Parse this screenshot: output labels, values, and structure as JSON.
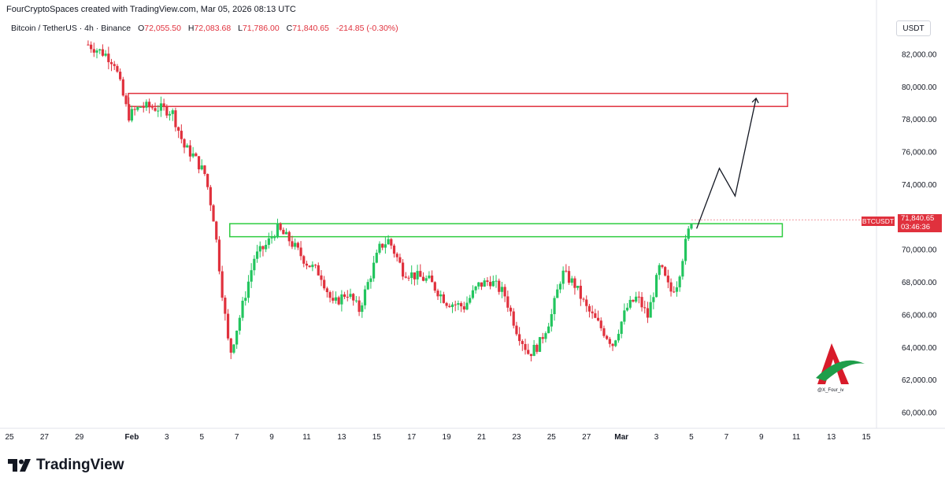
{
  "header": {
    "credit": "FourCryptoSpaces created with TradingView.com, Mar 05, 2026 08:13 UTC"
  },
  "legend": {
    "symbol": "Bitcoin / TetherUS · 4h · Binance",
    "o_label": "O",
    "o_value": "72,055.50",
    "h_label": "H",
    "h_value": "72,083.68",
    "l_label": "L",
    "l_value": "71,786.00",
    "c_label": "C",
    "c_value": "71,840.65",
    "change": "-214.85 (-0.30%)"
  },
  "currency": "USDT",
  "price_tag": {
    "symbol": "BTCUSDT",
    "price": "71,840.65",
    "countdown": "03:46:36"
  },
  "brand": {
    "name": "TradingView"
  },
  "watermark": {
    "handle": "@X_Four_iv"
  },
  "colors": {
    "up": "#22c55e",
    "down": "#e0313d",
    "resistance_box": "#e0313d",
    "support_box": "#2ecc40",
    "projection": "#131722",
    "axis_text": "#131722"
  },
  "chart_data": {
    "type": "candlestick",
    "interval": "4h",
    "y_axis": {
      "side": "right",
      "ticks": [
        "82,000.00",
        "80,000.00",
        "78,000.00",
        "76,000.00",
        "74,000.00",
        "72,000.00",
        "70,000.00",
        "68,000.00",
        "66,000.00",
        "64,000.00",
        "62,000.00",
        "60,000.00"
      ],
      "tick_values": [
        82000,
        80000,
        78000,
        76000,
        74000,
        72000,
        70000,
        68000,
        66000,
        64000,
        62000,
        60000
      ],
      "range": [
        59300,
        83500
      ]
    },
    "x_axis": {
      "labels": [
        "25",
        "27",
        "29",
        "Feb",
        "3",
        "5",
        "7",
        "9",
        "11",
        "13",
        "15",
        "17",
        "19",
        "21",
        "23",
        "25",
        "27",
        "Mar",
        "3",
        "5",
        "7",
        "9",
        "11",
        "13",
        "15"
      ],
      "label_day_index": [
        0,
        2,
        4,
        7,
        9,
        11,
        13,
        15,
        17,
        19,
        21,
        23,
        25,
        27,
        29,
        31,
        33,
        35,
        37,
        39,
        41,
        43,
        45,
        47,
        49
      ],
      "day_index_range": [
        0,
        50
      ],
      "day_index_origin": "Jan 25"
    },
    "zones": [
      {
        "name": "resistance",
        "from": 78800,
        "to": 79600,
        "start_day": 6.8,
        "end_day": 44.5,
        "color": "#e0313d"
      },
      {
        "name": "support",
        "from": 70800,
        "to": 71600,
        "start_day": 12.6,
        "end_day": 44.2,
        "color": "#2ecc40"
      }
    ],
    "projection": {
      "days": [
        39.3,
        40.6,
        41.5,
        42.7
      ],
      "prices": [
        71300,
        75000,
        73300,
        79300
      ]
    },
    "close_path": {
      "days": [
        4.5,
        5.5,
        6.0,
        6.8,
        7.5,
        8.5,
        9.3,
        10.0,
        10.5,
        11.2,
        11.7,
        12.1,
        12.6,
        13.2,
        14.0,
        14.7,
        15.3,
        16.0,
        17.0,
        17.8,
        18.5,
        19.3,
        20.0,
        20.7,
        21.2,
        21.7,
        22.5,
        23.2,
        24.0,
        25.0,
        26.0,
        26.8,
        27.5,
        28.3,
        29.0,
        29.7,
        30.3,
        31.0,
        31.6,
        32.3,
        33.0,
        33.7,
        34.5,
        35.3,
        35.9,
        36.5,
        37.2,
        37.8,
        38.2,
        38.6,
        39.0
      ],
      "prices": [
        82600,
        82000,
        81500,
        78200,
        78800,
        78700,
        78500,
        76300,
        75800,
        74600,
        71800,
        68000,
        63500,
        66000,
        69500,
        70300,
        71300,
        70600,
        69200,
        68500,
        66600,
        67400,
        66300,
        68600,
        70200,
        70600,
        68700,
        68400,
        68100,
        66800,
        66500,
        67800,
        68100,
        67300,
        65100,
        63600,
        64200,
        66000,
        68600,
        67900,
        66400,
        65400,
        64200,
        66400,
        67100,
        65900,
        69000,
        67400,
        68000,
        70100,
        71840
      ]
    },
    "price_scale_label": "71,840.65"
  }
}
